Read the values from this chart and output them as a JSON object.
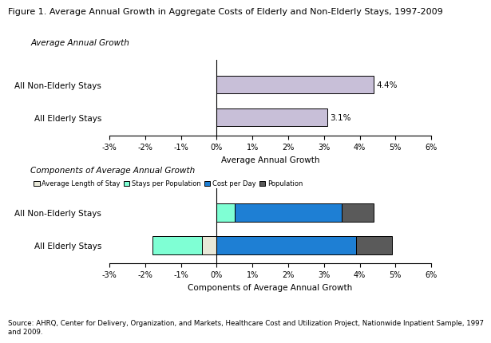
{
  "title": "Figure 1. Average Annual Growth in Aggregate Costs of Elderly and Non-Elderly Stays, 1997-2009",
  "top_chart": {
    "subtitle": "Average Annual Growth",
    "xlabel": "Average Annual Growth",
    "categories": [
      "All Elderly Stays",
      "All Non-Elderly Stays"
    ],
    "values": [
      3.1,
      4.4
    ],
    "bar_color": "#c8bfd8",
    "bar_edge_color": "#000000",
    "xlim": [
      -3,
      6
    ],
    "xticks": [
      -3,
      -2,
      -1,
      0,
      1,
      2,
      3,
      4,
      5,
      6
    ],
    "xtick_labels": [
      "-3%",
      "-2%",
      "-1%",
      "0%",
      "1%",
      "2%",
      "3%",
      "4%",
      "5%",
      "6%"
    ],
    "value_labels": [
      "3.1%",
      "4.4%"
    ]
  },
  "bottom_chart": {
    "subtitle": "Components of Average Annual Growth",
    "xlabel": "Components of Average Annual Growth",
    "categories": [
      "All Elderly Stays",
      "All Non-Elderly Stays"
    ],
    "comp_names": [
      "Average Length of Stay",
      "Stays per Population",
      "Cost per Day",
      "Population"
    ],
    "comp_colors": [
      "#e8e8d8",
      "#7fffd4",
      "#1e7fd4",
      "#5a5a5a"
    ],
    "comp_edges": [
      "#000000",
      "#000000",
      "#000000",
      "#000000"
    ],
    "elderly_values": [
      -0.4,
      -1.4,
      3.9,
      1.0
    ],
    "nonelderly_values": [
      0.0,
      0.5,
      3.0,
      0.9
    ],
    "xlim": [
      -3,
      6
    ],
    "xticks": [
      -3,
      -2,
      -1,
      0,
      1,
      2,
      3,
      4,
      5,
      6
    ],
    "xtick_labels": [
      "-3%",
      "-2%",
      "-1%",
      "0%",
      "1%",
      "2%",
      "3%",
      "4%",
      "5%",
      "6%"
    ]
  },
  "source_text": "Source: AHRQ, Center for Delivery, Organization, and Markets, Healthcare Cost and Utilization Project, Nationwide Inpatient Sample, 1997\nand 2009.",
  "background_color": "#ffffff",
  "title_fontsize": 8,
  "label_fontsize": 7.5,
  "tick_fontsize": 7,
  "subtitle_fontsize": 7.5
}
